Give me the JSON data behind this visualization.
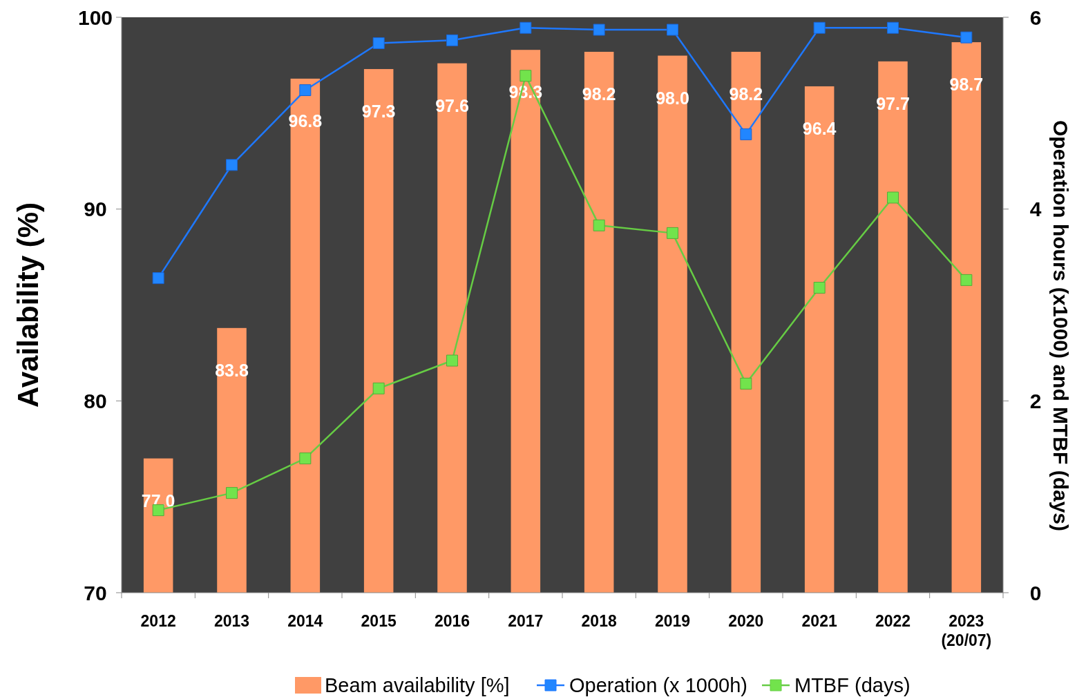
{
  "chart_data": {
    "type": "bar",
    "ylabel": "Availability (%)",
    "y2label": "Operation hours (x1000) and MTBF (days)",
    "categories": [
      "2012",
      "2013",
      "2014",
      "2015",
      "2016",
      "2017",
      "2018",
      "2019",
      "2020",
      "2021",
      "2022",
      "2023\n(20/07)"
    ],
    "series": [
      {
        "name": "Beam availability [%]",
        "color": "#ff9966",
        "values": [
          77.0,
          83.8,
          96.8,
          97.3,
          97.6,
          98.3,
          98.2,
          98.0,
          98.2,
          96.4,
          97.7,
          98.7
        ],
        "value_labels": [
          "77.0",
          "83.8",
          "96.8",
          "97.3",
          "97.6",
          "98.3",
          "98.2",
          "98.0",
          "98.2",
          "96.4",
          "97.7",
          "98.7"
        ]
      },
      {
        "name": "Operation (x 1000h)",
        "type": "line",
        "axis": "y2",
        "color": "#1e78ff",
        "values": [
          3.28,
          4.46,
          5.24,
          5.73,
          5.76,
          5.89,
          5.87,
          5.87,
          4.78,
          5.89,
          5.89,
          5.79
        ]
      },
      {
        "name": "MTBF (days)",
        "type": "line",
        "axis": "y2",
        "color": "#66cc44",
        "values": [
          0.86,
          1.04,
          1.4,
          2.13,
          2.42,
          5.39,
          3.83,
          3.75,
          2.18,
          3.18,
          4.12,
          3.26
        ]
      }
    ],
    "ylim": [
      70,
      100
    ],
    "yticks": [
      70,
      80,
      90,
      100
    ],
    "y2lim": [
      0,
      6
    ],
    "y2ticks": [
      0,
      2,
      4,
      6
    ],
    "marker": "square",
    "legend": "bottom",
    "grid": false
  }
}
